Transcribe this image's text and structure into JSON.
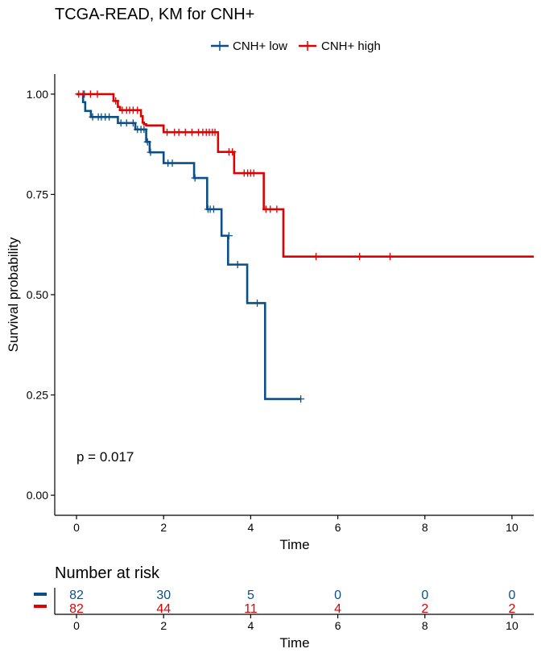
{
  "colors": {
    "low": "#0b4f8a",
    "high": "#e00000",
    "axis": "#000000"
  },
  "chart_data": [
    {
      "type": "line",
      "subtype": "kaplan-meier",
      "title": "TCGA-READ, KM for CNH+",
      "xlabel": "Time",
      "ylabel": "Survival probability",
      "xlim": [
        -0.5,
        10.5
      ],
      "ylim": [
        -0.05,
        1.05
      ],
      "x_ticks": [
        0,
        2,
        4,
        6,
        8,
        10
      ],
      "x_tick_labels": [
        "0",
        "2",
        "4",
        "6",
        "8",
        "10"
      ],
      "y_ticks": [
        0,
        0.25,
        0.5,
        0.75,
        1.0
      ],
      "y_tick_labels": [
        "0.00",
        "0.25",
        "0.50",
        "0.75",
        "1.00"
      ],
      "grid": false,
      "legend_position": "top",
      "annotation": "p = 0.017",
      "series": [
        {
          "name": "CNH+ low",
          "color": "#0b4f8a",
          "steps": [
            [
              0,
              1.0
            ],
            [
              0.15,
              0.98
            ],
            [
              0.2,
              0.958
            ],
            [
              0.33,
              0.943
            ],
            [
              0.95,
              0.928
            ],
            [
              1.35,
              0.912
            ],
            [
              1.6,
              0.881
            ],
            [
              1.68,
              0.855
            ],
            [
              2.0,
              0.828
            ],
            [
              2.7,
              0.791
            ],
            [
              3.0,
              0.713
            ],
            [
              3.33,
              0.647
            ],
            [
              3.48,
              0.575
            ],
            [
              3.92,
              0.479
            ],
            [
              4.33,
              0.24
            ],
            [
              5.15,
              0.24
            ]
          ],
          "censor": [
            [
              0.18,
              1.0
            ],
            [
              0.37,
              0.943
            ],
            [
              0.5,
              0.943
            ],
            [
              0.57,
              0.943
            ],
            [
              0.66,
              0.943
            ],
            [
              0.75,
              0.943
            ],
            [
              1.02,
              0.928
            ],
            [
              1.15,
              0.928
            ],
            [
              1.3,
              0.928
            ],
            [
              1.4,
              0.912
            ],
            [
              1.48,
              0.912
            ],
            [
              1.55,
              0.912
            ],
            [
              1.63,
              0.881
            ],
            [
              1.7,
              0.855
            ],
            [
              2.1,
              0.828
            ],
            [
              2.2,
              0.828
            ],
            [
              2.72,
              0.791
            ],
            [
              3.02,
              0.713
            ],
            [
              3.07,
              0.713
            ],
            [
              3.15,
              0.713
            ],
            [
              3.5,
              0.647
            ],
            [
              3.7,
              0.575
            ],
            [
              4.15,
              0.479
            ],
            [
              5.15,
              0.24
            ]
          ]
        },
        {
          "name": "CNH+ high",
          "color": "#e00000",
          "steps": [
            [
              0,
              1.0
            ],
            [
              0.85,
              0.983
            ],
            [
              0.95,
              0.968
            ],
            [
              1.0,
              0.96
            ],
            [
              1.48,
              0.945
            ],
            [
              1.52,
              0.929
            ],
            [
              1.55,
              0.925
            ],
            [
              1.6,
              0.922
            ],
            [
              2.0,
              0.905
            ],
            [
              3.25,
              0.856
            ],
            [
              3.62,
              0.803
            ],
            [
              4.3,
              0.713
            ],
            [
              4.75,
              0.595
            ],
            [
              10.5,
              0.595
            ]
          ],
          "censor": [
            [
              0.05,
              1.0
            ],
            [
              0.15,
              1.0
            ],
            [
              0.32,
              1.0
            ],
            [
              0.48,
              1.0
            ],
            [
              0.9,
              0.983
            ],
            [
              1.05,
              0.96
            ],
            [
              1.15,
              0.96
            ],
            [
              1.22,
              0.96
            ],
            [
              1.3,
              0.96
            ],
            [
              1.4,
              0.96
            ],
            [
              2.08,
              0.905
            ],
            [
              2.25,
              0.905
            ],
            [
              2.35,
              0.905
            ],
            [
              2.5,
              0.905
            ],
            [
              2.65,
              0.905
            ],
            [
              2.8,
              0.905
            ],
            [
              2.9,
              0.905
            ],
            [
              2.98,
              0.905
            ],
            [
              3.05,
              0.905
            ],
            [
              3.12,
              0.905
            ],
            [
              3.18,
              0.905
            ],
            [
              3.5,
              0.856
            ],
            [
              3.58,
              0.856
            ],
            [
              3.85,
              0.803
            ],
            [
              3.93,
              0.803
            ],
            [
              4.0,
              0.803
            ],
            [
              4.07,
              0.803
            ],
            [
              4.35,
              0.713
            ],
            [
              4.45,
              0.713
            ],
            [
              4.6,
              0.713
            ],
            [
              5.5,
              0.595
            ],
            [
              6.5,
              0.595
            ],
            [
              7.2,
              0.595
            ]
          ]
        }
      ]
    },
    {
      "type": "table",
      "title": "Number at risk",
      "xlabel": "Time",
      "x_ticks": [
        0,
        2,
        4,
        6,
        8,
        10
      ],
      "x_tick_labels": [
        "0",
        "2",
        "4",
        "6",
        "8",
        "10"
      ],
      "rows": [
        {
          "color": "#0b4f8a",
          "values": [
            82,
            30,
            5,
            0,
            0,
            0
          ],
          "labels": [
            "82",
            "30",
            "5",
            "0",
            "0",
            "0"
          ]
        },
        {
          "color": "#e00000",
          "values": [
            82,
            44,
            11,
            4,
            2,
            2
          ],
          "labels": [
            "82",
            "44",
            "11",
            "4",
            "2",
            "2"
          ]
        }
      ]
    }
  ]
}
